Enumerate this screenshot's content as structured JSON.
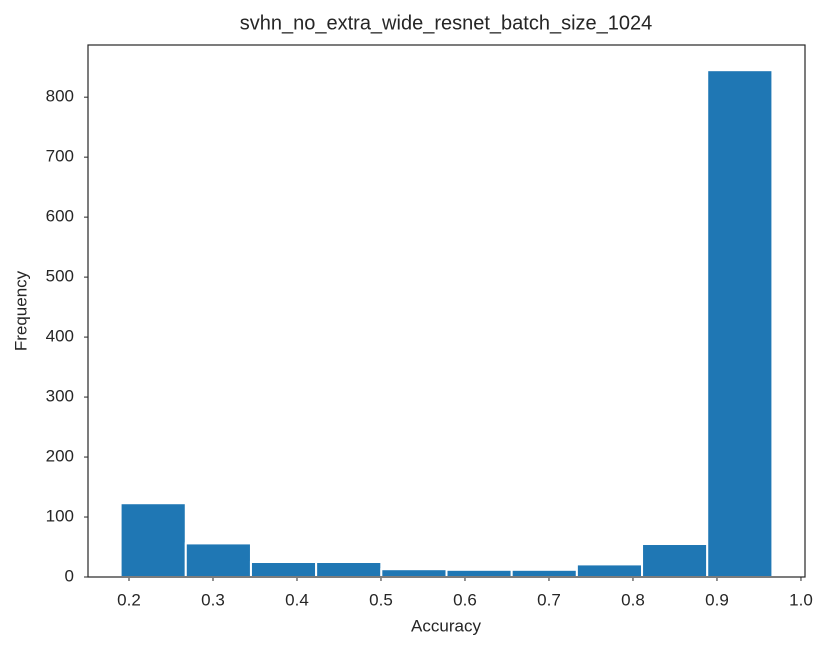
{
  "chart_data": {
    "type": "histogram",
    "title": "svhn_no_extra_wide_resnet_batch_size_1024",
    "xlabel": "Accuracy",
    "ylabel": "Frequency",
    "bins": [
      0.19,
      0.2676,
      0.3452,
      0.4228,
      0.5004,
      0.578,
      0.6556,
      0.7332,
      0.8108,
      0.8884,
      0.966
    ],
    "values": [
      123,
      56,
      25,
      25,
      13,
      12,
      12,
      21,
      55,
      845
    ],
    "color": "#1f77b4",
    "xlim": [
      0.1512,
      1.0048
    ],
    "ylim": [
      0,
      887
    ],
    "xticks": [
      0.2,
      0.3,
      0.4,
      0.5,
      0.6,
      0.7,
      0.8,
      0.9,
      {
        "value": 1.0,
        "label": "1.0"
      }
    ],
    "yticks": [
      0,
      100,
      200,
      300,
      400,
      500,
      600,
      700,
      800
    ],
    "grid": false
  }
}
